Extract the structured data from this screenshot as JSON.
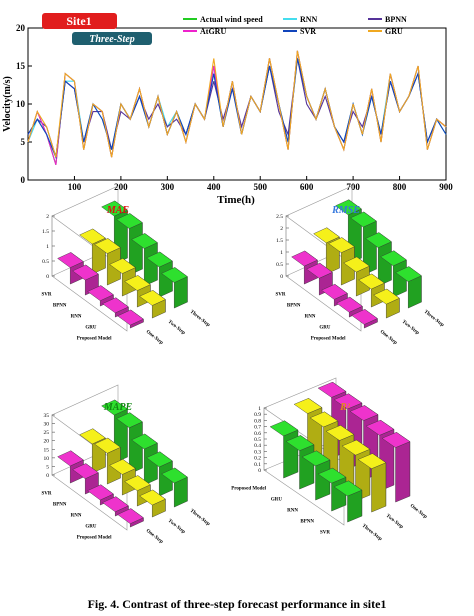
{
  "figure": {
    "caption": "Fig. 4. Contrast of three-step forecast performance in site1"
  },
  "colors": {
    "actual": "#22cc22",
    "rnn": "#44ddee",
    "bpnn": "#553399",
    "atgru": "#ee22cc",
    "svr": "#1144bb",
    "gru": "#f0a820",
    "site_badge": "#e11d1d",
    "step_badge": "#1f5f6f",
    "bar_magenta": "#ee33cc",
    "bar_yellow": "#f5f01a",
    "bar_green": "#2ee02e"
  },
  "chart_data": [
    {
      "id": "wind-speed",
      "type": "line",
      "title": "",
      "badge_site": "Site1",
      "badge_step": "Three-Step",
      "xlabel": "Time(h)",
      "ylabel": "Velocity(m/s)",
      "xlim": [
        0,
        900
      ],
      "ylim": [
        0,
        20
      ],
      "xticks": [
        "100",
        "200",
        "300",
        "400",
        "500",
        "600",
        "700",
        "800",
        "900"
      ],
      "yticks": [
        "0",
        "5",
        "10",
        "15",
        "20"
      ],
      "legend": [
        "Actual wind speed",
        "RNN",
        "BPNN",
        "AtGRU",
        "SVR",
        "GRU"
      ],
      "x": [
        0,
        20,
        40,
        60,
        80,
        100,
        120,
        140,
        160,
        180,
        200,
        220,
        240,
        260,
        280,
        300,
        320,
        340,
        360,
        380,
        400,
        420,
        440,
        460,
        480,
        500,
        520,
        540,
        560,
        580,
        600,
        620,
        640,
        660,
        680,
        700,
        720,
        740,
        760,
        780,
        800,
        820,
        840,
        860,
        880,
        900
      ],
      "series": [
        {
          "name": "Actual wind speed",
          "values": [
            5,
            9,
            6,
            2,
            14,
            13,
            4,
            10,
            9,
            3,
            10,
            8,
            12,
            7,
            11,
            6,
            9,
            5,
            10,
            8,
            15,
            7,
            13,
            6,
            11,
            9,
            16,
            10,
            4,
            17,
            11,
            8,
            12,
            7,
            4,
            10,
            6,
            12,
            5,
            14,
            9,
            11,
            15,
            4,
            8,
            7
          ]
        },
        {
          "name": "RNN",
          "values": [
            5,
            8,
            6,
            3,
            13,
            13,
            5,
            10,
            8,
            4,
            10,
            8,
            11,
            7,
            11,
            7,
            9,
            6,
            10,
            8,
            14,
            7,
            13,
            6,
            11,
            9,
            15,
            10,
            5,
            16,
            11,
            8,
            12,
            7,
            5,
            10,
            6,
            11,
            6,
            14,
            9,
            11,
            14,
            5,
            8,
            6
          ]
        },
        {
          "name": "BPNN",
          "values": [
            6,
            8,
            7,
            3,
            13,
            12,
            5,
            9,
            9,
            4,
            9,
            8,
            11,
            8,
            10,
            7,
            8,
            6,
            10,
            8,
            13,
            8,
            12,
            7,
            11,
            9,
            15,
            9,
            6,
            16,
            10,
            8,
            11,
            7,
            5,
            9,
            7,
            11,
            6,
            13,
            9,
            11,
            14,
            5,
            8,
            7
          ]
        },
        {
          "name": "AtGRU",
          "values": [
            5,
            9,
            6,
            2,
            14,
            13,
            4,
            10,
            9,
            3,
            10,
            8,
            12,
            7,
            11,
            6,
            9,
            5,
            10,
            8,
            15,
            7,
            13,
            6,
            11,
            9,
            16,
            10,
            4,
            17,
            11,
            8,
            12,
            7,
            4,
            10,
            6,
            12,
            5,
            14,
            9,
            11,
            15,
            4,
            8,
            7
          ]
        },
        {
          "name": "SVR",
          "values": [
            6,
            8,
            6,
            3,
            13,
            12,
            5,
            10,
            8,
            4,
            10,
            8,
            11,
            7,
            11,
            6,
            9,
            6,
            10,
            8,
            14,
            7,
            12,
            6,
            11,
            9,
            15,
            10,
            5,
            16,
            11,
            8,
            12,
            7,
            5,
            10,
            6,
            11,
            6,
            13,
            9,
            11,
            14,
            5,
            8,
            6
          ]
        },
        {
          "name": "GRU",
          "values": [
            5,
            9,
            7,
            3,
            14,
            13,
            4,
            10,
            9,
            3,
            10,
            8,
            12,
            7,
            11,
            6,
            9,
            5,
            10,
            8,
            16,
            7,
            13,
            6,
            11,
            9,
            16,
            10,
            4,
            17,
            11,
            8,
            12,
            7,
            4,
            10,
            6,
            12,
            5,
            14,
            9,
            11,
            15,
            4,
            8,
            7
          ]
        }
      ]
    },
    {
      "id": "mae",
      "type": "bar",
      "title": "MAE",
      "zlim": [
        0,
        2
      ],
      "zticks": [
        "0",
        "0.5",
        "1",
        "1.5",
        "2"
      ],
      "models": [
        "SVR",
        "BPNN",
        "RNN",
        "GRU",
        "Proposed Model"
      ],
      "steps": [
        "One-Step",
        "Two-Step",
        "Three-Step"
      ],
      "values": [
        [
          0.55,
          1.0,
          1.6
        ],
        [
          0.5,
          1.05,
          1.55
        ],
        [
          0.18,
          0.75,
          1.25
        ],
        [
          0.14,
          0.55,
          1.0
        ],
        [
          0.1,
          0.42,
          0.85
        ]
      ]
    },
    {
      "id": "rmse",
      "type": "bar",
      "title": "RMSE",
      "zlim": [
        0,
        2.5
      ],
      "zticks": [
        "0",
        "0.5",
        "1",
        "1.5",
        "2",
        "2.5"
      ],
      "models": [
        "SVR",
        "BPNN",
        "RNN",
        "GRU",
        "Proposed Model"
      ],
      "steps": [
        "One-Step",
        "Two-Step",
        "Three-Step"
      ],
      "values": [
        [
          0.75,
          1.3,
          2.05
        ],
        [
          0.7,
          1.35,
          2.0
        ],
        [
          0.28,
          1.0,
          1.6
        ],
        [
          0.2,
          0.75,
          1.3
        ],
        [
          0.15,
          0.58,
          1.1
        ]
      ]
    },
    {
      "id": "mape",
      "type": "bar",
      "title": "MAPE",
      "zlim": [
        0,
        35
      ],
      "zticks": [
        "0",
        "5",
        "10",
        "15",
        "20",
        "25",
        "30",
        "35"
      ],
      "models": [
        "SVR",
        "BPNN",
        "RNN",
        "GRU",
        "Proposed Model"
      ],
      "steps": [
        "One-Step",
        "Two-Step",
        "Three-Step"
      ],
      "values": [
        [
          10,
          17,
          28
        ],
        [
          9,
          18,
          27
        ],
        [
          3,
          12,
          21
        ],
        [
          2.5,
          9,
          17
        ],
        [
          2,
          7,
          14
        ]
      ]
    },
    {
      "id": "r2",
      "type": "bar",
      "title": "R²",
      "zlim": [
        0,
        1
      ],
      "zticks": [
        "0",
        "0.1",
        "0.2",
        "0.3",
        "0.4",
        "0.5",
        "0.6",
        "0.7",
        "0.8",
        "0.9",
        "1"
      ],
      "models": [
        "Proposed Model",
        "GRU",
        "RNN",
        "BPNN",
        "SVR"
      ],
      "steps": [
        "Three-Step",
        "Two-Step",
        "One-Step"
      ],
      "values": [
        [
          0.68,
          0.88,
          0.98
        ],
        [
          0.62,
          0.84,
          0.97
        ],
        [
          0.55,
          0.8,
          0.96
        ],
        [
          0.45,
          0.74,
          0.9
        ],
        [
          0.42,
          0.7,
          0.88
        ]
      ]
    }
  ]
}
